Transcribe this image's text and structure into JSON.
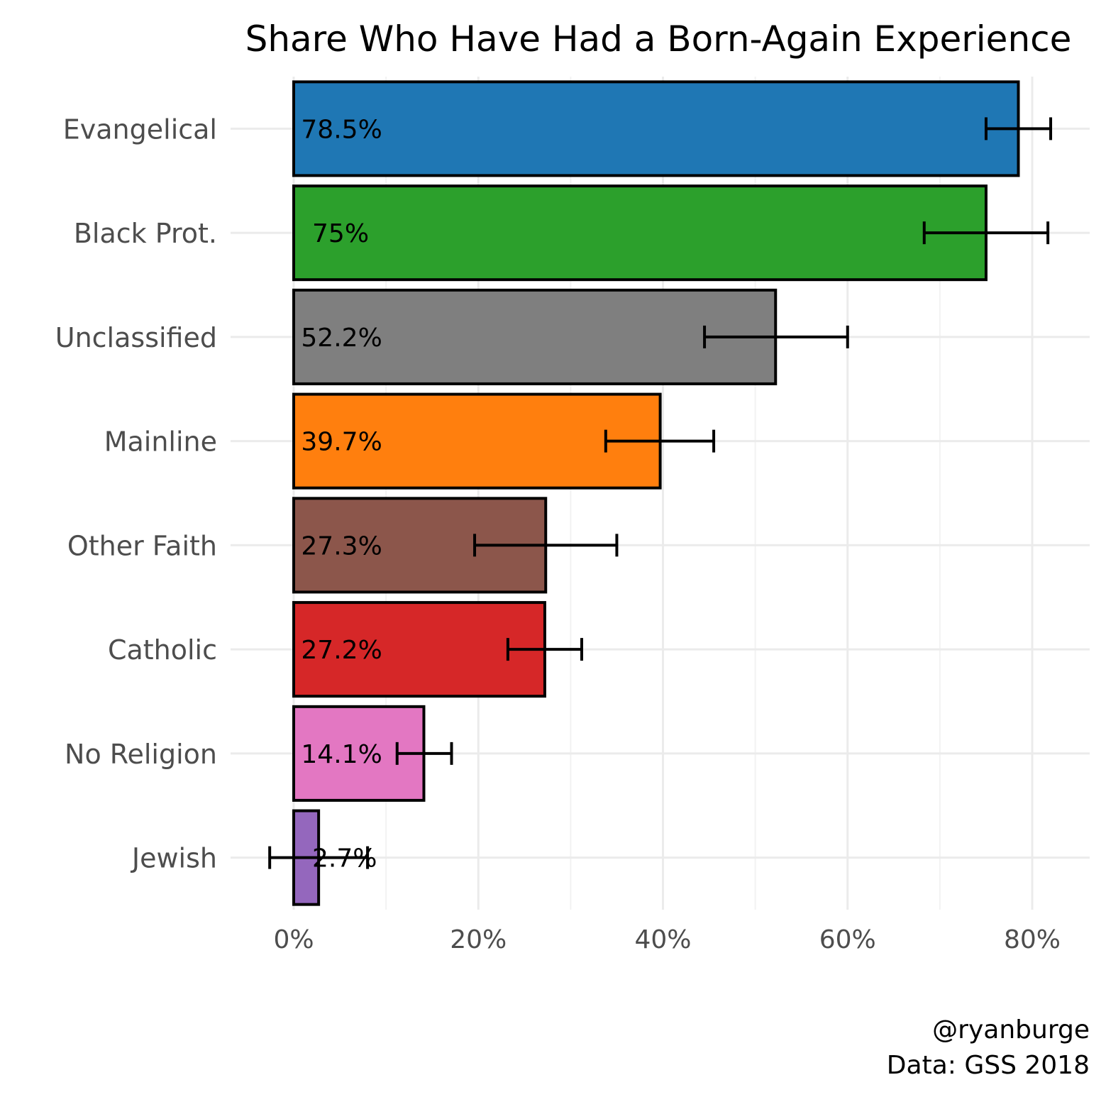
{
  "chart_data": {
    "type": "bar",
    "orientation": "horizontal",
    "title": "Share Who Have Had a Born-Again Experience",
    "xlabel": "",
    "ylabel": "",
    "xlim": [
      -0.035,
      0.86
    ],
    "x_ticks": [
      {
        "value": 0.0,
        "label": "0%"
      },
      {
        "value": 0.2,
        "label": "20%"
      },
      {
        "value": 0.4,
        "label": "40%"
      },
      {
        "value": 0.6,
        "label": "60%"
      },
      {
        "value": 0.8,
        "label": "80%"
      }
    ],
    "grid": true,
    "legend": "none",
    "categories": [
      "Evangelical",
      "Black Prot.",
      "Unclassified",
      "Mainline",
      "Other Faith",
      "Catholic",
      "No Religion",
      "Jewish"
    ],
    "values": [
      0.785,
      0.75,
      0.522,
      0.397,
      0.273,
      0.272,
      0.141,
      0.027
    ],
    "value_labels": [
      "78.5%",
      "75%",
      "52.2%",
      "39.7%",
      "27.3%",
      "27.2%",
      "14.1%",
      "2.7%"
    ],
    "error_low": [
      0.75,
      0.683,
      0.445,
      0.338,
      0.196,
      0.232,
      0.112,
      -0.026
    ],
    "error_high": [
      0.82,
      0.817,
      0.6,
      0.455,
      0.35,
      0.312,
      0.171,
      0.08
    ],
    "colors": [
      "#1f77b4",
      "#2ca02c",
      "#7f7f7f",
      "#ff7f0e",
      "#8c564b",
      "#d62728",
      "#e377c2",
      "#9467bd"
    ]
  },
  "caption": {
    "line1": "@ryanburge",
    "line2": "Data: GSS 2018"
  }
}
